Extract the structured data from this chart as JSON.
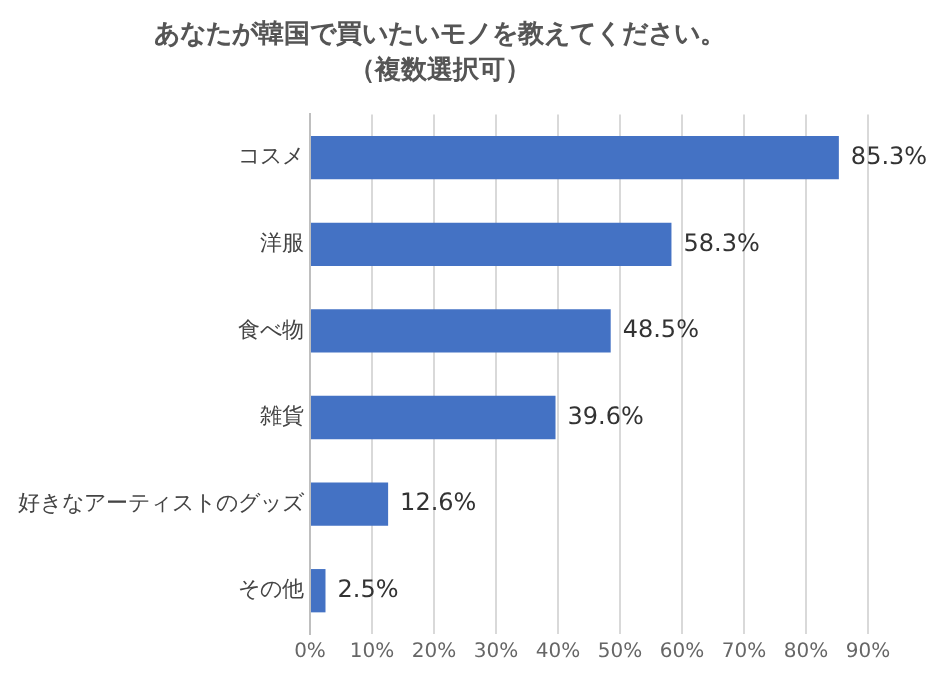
{
  "chart_data": {
    "type": "bar",
    "orientation": "horizontal",
    "title": "あなたが韓国で買いたいモノを教えてください。",
    "subtitle": "（複数選択可）",
    "categories": [
      "コスメ",
      "洋服",
      "食べ物",
      "雑貨",
      "好きなアーティストのグッズ",
      "その他"
    ],
    "values": [
      85.3,
      58.3,
      48.5,
      39.6,
      12.6,
      2.5
    ],
    "value_labels": [
      "85.3%",
      "58.3%",
      "48.5%",
      "39.6%",
      "12.6%",
      "2.5%"
    ],
    "color": "#4472c4",
    "xlim": [
      0,
      90
    ],
    "xticks": [
      {
        "value": 0,
        "label": "0%"
      },
      {
        "value": 10,
        "label": "10%"
      },
      {
        "value": 20,
        "label": "20%"
      },
      {
        "value": 30,
        "label": "30%"
      },
      {
        "value": 40,
        "label": "40%"
      },
      {
        "value": 50,
        "label": "50%"
      },
      {
        "value": 60,
        "label": "60%"
      },
      {
        "value": 70,
        "label": "70%"
      },
      {
        "value": 80,
        "label": "80%"
      },
      {
        "value": 90,
        "label": "90%"
      }
    ],
    "grid": "x",
    "legend": false
  }
}
